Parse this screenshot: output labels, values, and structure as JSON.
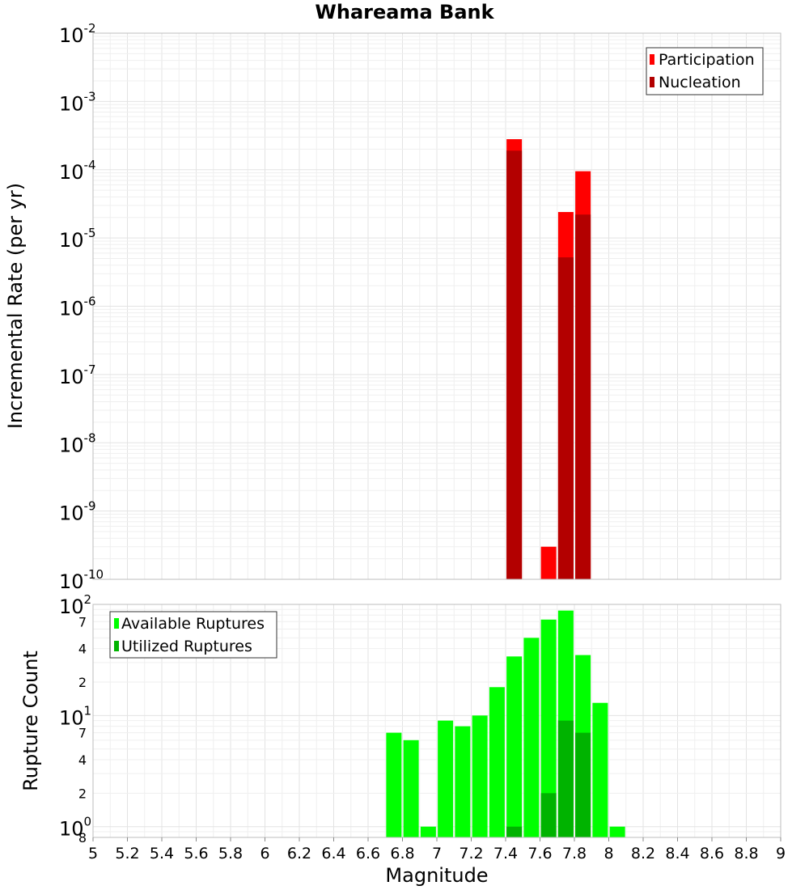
{
  "title": "Whareama Bank",
  "chart_data": [
    {
      "type": "bar",
      "ylabel": "Incremental Rate (per yr)",
      "xlabel": "Magnitude",
      "y_scale": "log",
      "ylim": [
        1e-10,
        0.01
      ],
      "xlim": [
        5,
        9
      ],
      "grid": true,
      "legend_position": "top-right",
      "y_tick_labels": [
        {
          "value": 0.01,
          "base": "10",
          "exp": "-2"
        },
        {
          "value": 0.001,
          "base": "10",
          "exp": "-3"
        },
        {
          "value": 0.0001,
          "base": "10",
          "exp": "-4"
        },
        {
          "value": 1e-05,
          "base": "10",
          "exp": "-5"
        },
        {
          "value": 1e-06,
          "base": "10",
          "exp": "-6"
        },
        {
          "value": 1e-07,
          "base": "10",
          "exp": "-7"
        },
        {
          "value": 1e-08,
          "base": "10",
          "exp": "-8"
        },
        {
          "value": 1e-09,
          "base": "10",
          "exp": "-9"
        },
        {
          "value": 1e-10,
          "base": "10",
          "exp": "-10"
        }
      ],
      "series": [
        {
          "name": "Participation",
          "color": "#ff0000",
          "points": [
            {
              "x": 7.45,
              "y": 0.00028
            },
            {
              "x": 7.65,
              "y": 3e-10
            },
            {
              "x": 7.75,
              "y": 2.4e-05
            },
            {
              "x": 7.85,
              "y": 9.5e-05
            }
          ]
        },
        {
          "name": "Nucleation",
          "color": "#b30000",
          "points": [
            {
              "x": 7.45,
              "y": 0.00019
            },
            {
              "x": 7.75,
              "y": 5.2e-06
            },
            {
              "x": 7.85,
              "y": 2.2e-05
            }
          ]
        }
      ]
    },
    {
      "type": "bar",
      "ylabel": "Rupture Count",
      "xlabel": "Magnitude",
      "y_scale": "log",
      "ylim": [
        0.8,
        100
      ],
      "xlim": [
        5,
        9
      ],
      "grid": true,
      "legend_position": "top-left",
      "y_tick_labels": [
        {
          "value": 100,
          "base": "10",
          "exp": "2",
          "minor": ""
        },
        {
          "value": 70,
          "minor": "7"
        },
        {
          "value": 40,
          "minor": "4"
        },
        {
          "value": 20,
          "minor": "2"
        },
        {
          "value": 10,
          "base": "10",
          "exp": "1",
          "minor": ""
        },
        {
          "value": 7,
          "minor": "7"
        },
        {
          "value": 4,
          "minor": "4"
        },
        {
          "value": 2,
          "minor": "2"
        },
        {
          "value": 1,
          "base": "10",
          "exp": "0",
          "minor": ""
        },
        {
          "value": 0.8,
          "minor": "8"
        }
      ],
      "series": [
        {
          "name": "Available Ruptures",
          "color": "#00ff00",
          "points": [
            {
              "x": 6.75,
              "y": 7
            },
            {
              "x": 6.85,
              "y": 6
            },
            {
              "x": 6.95,
              "y": 1
            },
            {
              "x": 7.05,
              "y": 9
            },
            {
              "x": 7.15,
              "y": 8
            },
            {
              "x": 7.25,
              "y": 10
            },
            {
              "x": 7.35,
              "y": 18
            },
            {
              "x": 7.45,
              "y": 34
            },
            {
              "x": 7.55,
              "y": 50
            },
            {
              "x": 7.65,
              "y": 73
            },
            {
              "x": 7.75,
              "y": 88
            },
            {
              "x": 7.85,
              "y": 35
            },
            {
              "x": 7.95,
              "y": 13
            },
            {
              "x": 8.05,
              "y": 1
            }
          ]
        },
        {
          "name": "Utilized Ruptures",
          "color": "#00b300",
          "points": [
            {
              "x": 7.45,
              "y": 1
            },
            {
              "x": 7.65,
              "y": 2
            },
            {
              "x": 7.75,
              "y": 9
            },
            {
              "x": 7.85,
              "y": 7
            }
          ]
        }
      ]
    }
  ],
  "x_tick_labels": [
    "5",
    "5.2",
    "5.4",
    "5.6",
    "5.8",
    "6",
    "6.2",
    "6.4",
    "6.6",
    "6.8",
    "7",
    "7.2",
    "7.4",
    "7.6",
    "7.8",
    "8",
    "8.2",
    "8.4",
    "8.6",
    "8.8",
    "9"
  ]
}
